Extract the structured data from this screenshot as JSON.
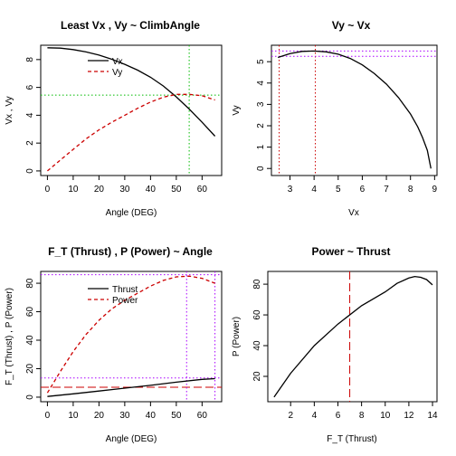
{
  "chart_data": [
    {
      "id": "vxvy_angle",
      "type": "line",
      "title": "Least Vx , Vy ~ ClimbAngle",
      "xlabel": "Angle (DEG)",
      "ylabel": "Vx , Vy",
      "xlim": [
        -2.6,
        67.6
      ],
      "ylim": [
        -0.33,
        9.03
      ],
      "xticks": [
        0,
        10,
        20,
        30,
        40,
        50,
        60
      ],
      "yticks": [
        0,
        2,
        4,
        6,
        8
      ],
      "legend": {
        "position": "top-center",
        "entries": [
          {
            "name": "Vx",
            "color": "#000000",
            "dash": "solid"
          },
          {
            "name": "Vy",
            "color": "#cc0000",
            "dash": "dashed"
          }
        ]
      },
      "series": [
        {
          "name": "Vx",
          "color": "#000000",
          "dash": "solid",
          "x": [
            0,
            5,
            10,
            15,
            20,
            25,
            30,
            35,
            40,
            45,
            50,
            55,
            60,
            65
          ],
          "y": [
            8.85,
            8.82,
            8.72,
            8.55,
            8.32,
            8.02,
            7.66,
            7.24,
            6.73,
            6.1,
            5.32,
            4.45,
            3.5,
            2.5
          ]
        },
        {
          "name": "Vy",
          "color": "#cc0000",
          "dash": "dashed",
          "x": [
            0,
            5,
            10,
            15,
            20,
            25,
            30,
            35,
            40,
            45,
            50,
            55,
            60,
            65
          ],
          "y": [
            0.0,
            0.78,
            1.55,
            2.3,
            2.95,
            3.5,
            4.0,
            4.5,
            4.95,
            5.3,
            5.5,
            5.5,
            5.4,
            5.1
          ]
        }
      ],
      "refs": [
        {
          "axis": "x",
          "value": 55,
          "color": "#00bb00",
          "dash": "dotted"
        },
        {
          "axis": "y",
          "value": 5.45,
          "color": "#00bb00",
          "dash": "dotted"
        }
      ]
    },
    {
      "id": "vy_vx",
      "type": "line",
      "title": "Vy ~ Vx",
      "xlabel": "Vx",
      "ylabel": "Vy",
      "xlim": [
        2.23,
        9.1
      ],
      "ylim": [
        -0.33,
        5.77
      ],
      "xticks": [
        3,
        4,
        5,
        6,
        7,
        8,
        9
      ],
      "yticks": [
        0,
        1,
        2,
        3,
        4,
        5
      ],
      "series": [
        {
          "name": "",
          "color": "#000000",
          "dash": "solid",
          "x": [
            2.5,
            3.0,
            3.5,
            4.0,
            4.5,
            5.0,
            5.5,
            6.0,
            6.5,
            7.0,
            7.5,
            8.0,
            8.3,
            8.5,
            8.7,
            8.85
          ],
          "y": [
            5.2,
            5.38,
            5.48,
            5.5,
            5.46,
            5.35,
            5.15,
            4.85,
            4.45,
            3.95,
            3.32,
            2.55,
            1.95,
            1.45,
            0.85,
            0.0
          ]
        }
      ],
      "refs": [
        {
          "axis": "x",
          "value": 2.55,
          "color": "#cc0000",
          "dash": "dotted"
        },
        {
          "axis": "x",
          "value": 4.05,
          "color": "#cc0000",
          "dash": "dotted"
        },
        {
          "axis": "y",
          "value": 5.5,
          "color": "#aa00ff",
          "dash": "dotted"
        },
        {
          "axis": "y",
          "value": 5.25,
          "color": "#aa00ff",
          "dash": "dotted"
        }
      ]
    },
    {
      "id": "thrust_power_angle",
      "type": "line",
      "title": "F_T (Thrust) , P (Power) ~ Angle",
      "xlabel": "Angle (DEG)",
      "ylabel": "F_T (Thrust) , P (Power)",
      "xlim": [
        -2.6,
        67.6
      ],
      "ylim": [
        -3.2,
        88.3
      ],
      "xticks": [
        0,
        10,
        20,
        30,
        40,
        50,
        60
      ],
      "yticks": [
        0,
        20,
        40,
        60,
        80
      ],
      "legend": {
        "position": "top-center",
        "entries": [
          {
            "name": "Thrust",
            "color": "#000000",
            "dash": "solid"
          },
          {
            "name": "Power",
            "color": "#cc0000",
            "dash": "dashed"
          }
        ]
      },
      "series": [
        {
          "name": "Thrust",
          "color": "#000000",
          "dash": "solid",
          "x": [
            0,
            10,
            20,
            30,
            40,
            50,
            60,
            65
          ],
          "y": [
            0.5,
            2.3,
            4.3,
            6.3,
            8.3,
            10.5,
            12.5,
            13.0
          ]
        },
        {
          "name": "Power",
          "color": "#cc0000",
          "dash": "dashed",
          "x": [
            0,
            5,
            10,
            15,
            20,
            25,
            30,
            35,
            40,
            45,
            50,
            55,
            60,
            65
          ],
          "y": [
            3,
            18,
            32,
            44,
            54,
            62,
            68,
            73,
            78,
            82,
            84.5,
            85,
            83.5,
            80
          ]
        }
      ],
      "refs": [
        {
          "axis": "y",
          "value": 7,
          "color": "#cc0000",
          "dash": "longdash"
        },
        {
          "axis": "y",
          "value": 86,
          "color": "#aa00ff",
          "dash": "dotted"
        },
        {
          "axis": "y",
          "value": 13.5,
          "color": "#aa00ff",
          "dash": "dotted"
        },
        {
          "axis": "x",
          "value": 54,
          "color": "#aa00ff",
          "dash": "dotted"
        },
        {
          "axis": "x",
          "value": 65,
          "color": "#aa00ff",
          "dash": "dotted"
        }
      ]
    },
    {
      "id": "power_thrust",
      "type": "line",
      "title": "Power ~ Thrust",
      "xlabel": "F_T (Thrust)",
      "ylabel": "P (Power)",
      "xlim": [
        0.07,
        14.38
      ],
      "ylim": [
        3.5,
        88.3
      ],
      "xticks": [
        2,
        4,
        6,
        8,
        10,
        12,
        14
      ],
      "yticks": [
        20,
        40,
        60,
        80
      ],
      "series": [
        {
          "name": "",
          "color": "#000000",
          "dash": "solid",
          "x": [
            0.6,
            2,
            4,
            6,
            8,
            10,
            11,
            12,
            12.5,
            13,
            13.5,
            14.0
          ],
          "y": [
            6.5,
            22,
            40,
            54,
            66,
            75,
            80.5,
            84,
            85,
            84.5,
            83,
            79.5
          ]
        }
      ],
      "refs": [
        {
          "axis": "x",
          "value": 7.0,
          "color": "#cc0000",
          "dash": "longdash"
        }
      ]
    }
  ]
}
